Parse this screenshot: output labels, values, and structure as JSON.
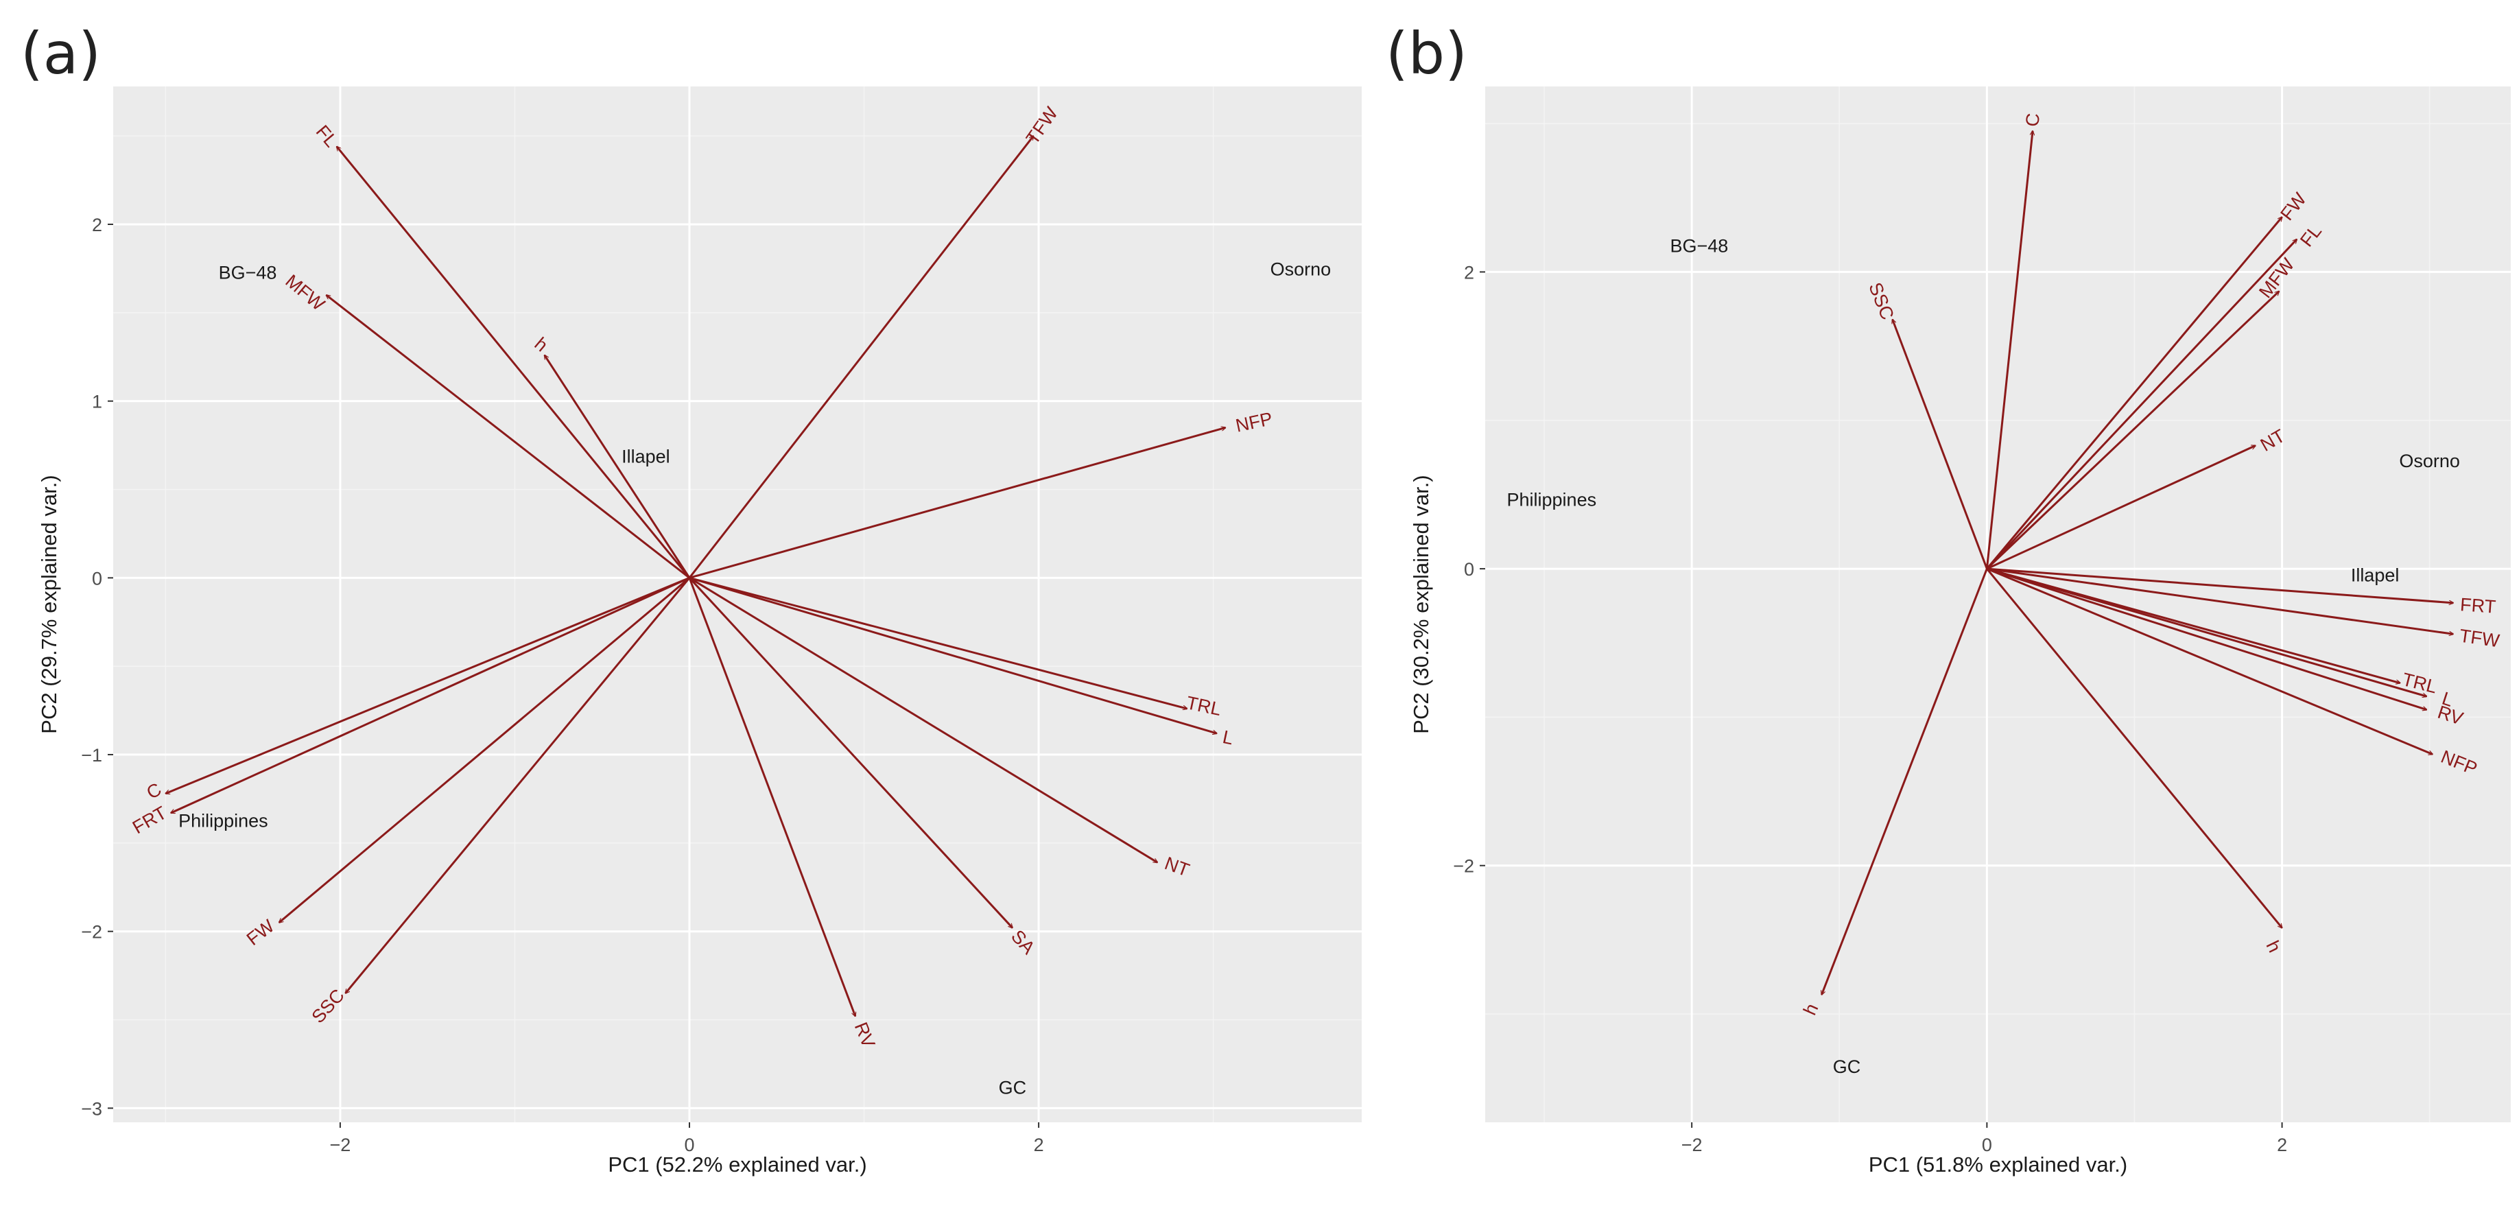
{
  "colors": {
    "panel_bg": "#ebebeb",
    "grid_major": "#ffffff",
    "arrow": "#8b1a1a",
    "text": "#1a1a1a"
  },
  "chart_data": [
    {
      "type": "scatter",
      "panel_label": "(a)",
      "subtype": "PCA biplot",
      "xlabel": "PC1 (52.2% explained var.)",
      "ylabel": "PC2 (29.7% explained var.)",
      "xlim": [
        -3.3,
        3.85
      ],
      "ylim": [
        -3.08,
        2.78
      ],
      "xticks": [
        -2,
        0,
        2
      ],
      "yticks": [
        -3,
        -2,
        -1,
        0,
        1,
        2
      ],
      "xtick_labels": [
        "−2",
        "0",
        "2"
      ],
      "ytick_labels": [
        "−3",
        "−2",
        "−1",
        "0",
        "1",
        "2"
      ],
      "grid": true,
      "observations": [
        {
          "label": "BG−48",
          "x": -2.53,
          "y": 1.73
        },
        {
          "label": "Osorno",
          "x": 3.5,
          "y": 1.75
        },
        {
          "label": "Illapel",
          "x": -0.25,
          "y": 0.69
        },
        {
          "label": "Philippines",
          "x": -2.67,
          "y": -1.37
        },
        {
          "label": "GC",
          "x": 1.85,
          "y": -2.88
        }
      ],
      "loadings": [
        {
          "label": "TFW",
          "x": 1.97,
          "y": 2.5
        },
        {
          "label": "FL",
          "x": -2.02,
          "y": 2.44
        },
        {
          "label": "MFW",
          "x": -2.08,
          "y": 1.6
        },
        {
          "label": "h",
          "x": -0.83,
          "y": 1.26
        },
        {
          "label": "NFP",
          "x": 3.07,
          "y": 0.85
        },
        {
          "label": "TRL",
          "x": 2.85,
          "y": -0.74
        },
        {
          "label": "L",
          "x": 3.02,
          "y": -0.88
        },
        {
          "label": "NT",
          "x": 2.68,
          "y": -1.61
        },
        {
          "label": "SA",
          "x": 1.85,
          "y": -1.98
        },
        {
          "label": "RV",
          "x": 0.95,
          "y": -2.48
        },
        {
          "label": "C",
          "x": -3.0,
          "y": -1.22
        },
        {
          "label": "FRT",
          "x": -2.97,
          "y": -1.33
        },
        {
          "label": "FW",
          "x": -2.35,
          "y": -1.95
        },
        {
          "label": "SSC",
          "x": -1.97,
          "y": -2.35
        }
      ]
    },
    {
      "type": "scatter",
      "panel_label": "(b)",
      "subtype": "PCA biplot",
      "xlabel": "PC1 (51.8% explained var.)",
      "ylabel": "PC2 (30.2% explained var.)",
      "xlim": [
        -3.4,
        3.55
      ],
      "ylim": [
        -3.73,
        3.25
      ],
      "xticks": [
        -2,
        0,
        2
      ],
      "yticks": [
        -2,
        0,
        2
      ],
      "xtick_labels": [
        "−2",
        "0",
        "2"
      ],
      "ytick_labels": [
        "−2",
        "0",
        "2"
      ],
      "grid": true,
      "observations": [
        {
          "label": "BG−48",
          "x": -1.95,
          "y": 2.18
        },
        {
          "label": "Philippines",
          "x": -2.95,
          "y": 0.47
        },
        {
          "label": "Osorno",
          "x": 3.0,
          "y": 0.73
        },
        {
          "label": "Illapel",
          "x": 2.63,
          "y": -0.04
        },
        {
          "label": "GC",
          "x": -0.95,
          "y": -3.35
        }
      ],
      "loadings": [
        {
          "label": "C",
          "x": 0.31,
          "y": 2.95
        },
        {
          "label": "FW",
          "x": 2.0,
          "y": 2.37
        },
        {
          "label": "FL",
          "x": 2.1,
          "y": 2.22
        },
        {
          "label": "MFW",
          "x": 1.98,
          "y": 1.87
        },
        {
          "label": "SSC",
          "x": -0.64,
          "y": 1.68
        },
        {
          "label": "NT",
          "x": 1.82,
          "y": 0.83
        },
        {
          "label": "FRT",
          "x": 3.16,
          "y": -0.23
        },
        {
          "label": "TFW",
          "x": 3.16,
          "y": -0.44
        },
        {
          "label": "TRL",
          "x": 2.8,
          "y": -0.77
        },
        {
          "label": "L",
          "x": 2.98,
          "y": -0.86
        },
        {
          "label": "RV",
          "x": 2.98,
          "y": -0.95
        },
        {
          "label": "NFP",
          "x": 3.02,
          "y": -1.25
        },
        {
          "label": "h",
          "x": 2.0,
          "y": -2.42
        },
        {
          "label": "h2",
          "display": "h",
          "x": -1.12,
          "y": -2.87
        }
      ]
    }
  ]
}
